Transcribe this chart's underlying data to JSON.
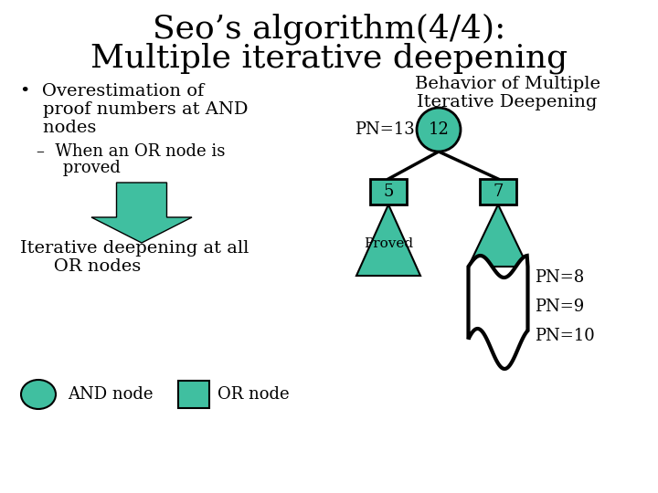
{
  "title_line1": "Seo’s algorithm(4/4):",
  "title_line2": "Multiple iterative deepening",
  "bg_color": "#ffffff",
  "teal_color": "#40BFA0",
  "text_color": "#000000",
  "bullet1": "•  Overestimation of",
  "bullet2": "    proof numbers at AND",
  "bullet3": "    nodes",
  "sub1": "–  When an OR node is",
  "sub2": "     proved",
  "iter1": "Iterative deepening at all",
  "iter2": "   OR nodes",
  "legend_and": "AND node",
  "legend_or": "OR node",
  "beh1": "Behavior of Multiple",
  "beh2": "Iterative Deepening",
  "pn13": "PN=13",
  "root_label": "12",
  "left_label": "5",
  "right_label": "7",
  "proved_label": "Proved",
  "pn8": "PN=8",
  "pn9": "PN=9",
  "pn10": "PN=10"
}
